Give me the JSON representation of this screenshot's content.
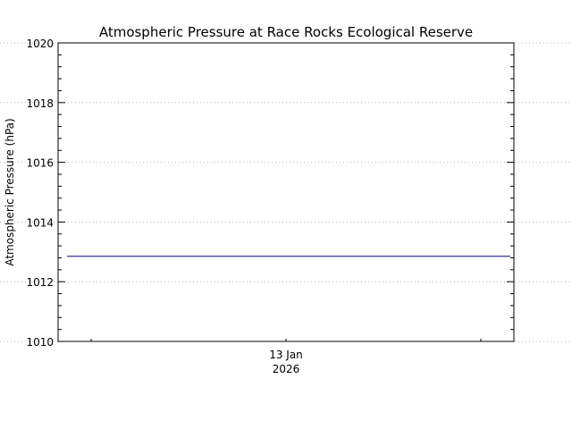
{
  "chart_data": {
    "type": "line",
    "title": "Atmospheric Pressure at Race Rocks Ecological Reserve",
    "ylabel": "Atmospheric Pressure (hPa)",
    "xlabel": "",
    "x_tick_labels": [
      {
        "line1": "13 Jan",
        "line2": "2026"
      }
    ],
    "ylim": [
      1010,
      1020
    ],
    "y_ticks": [
      1010,
      1012,
      1014,
      1016,
      1018,
      1020
    ],
    "grid": "horizontal dotted at major ticks",
    "series": [
      {
        "color": "#00007f",
        "values": [
          1012.85,
          1012.85
        ]
      }
    ]
  }
}
